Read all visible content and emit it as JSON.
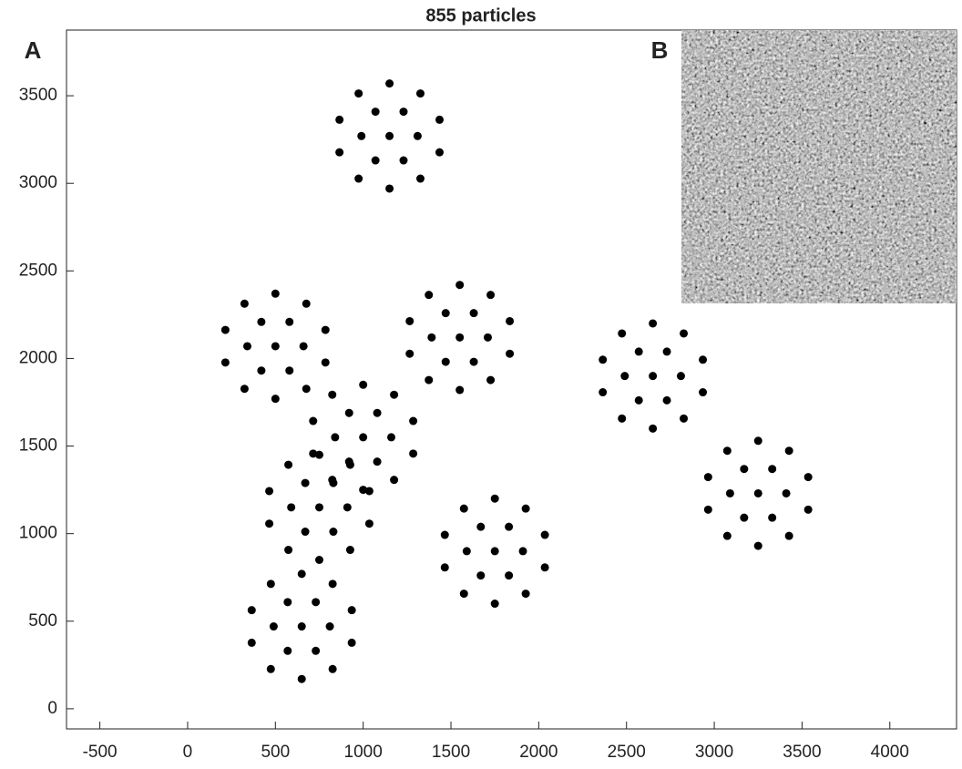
{
  "chart_data": {
    "type": "scatter",
    "title": "855 particles",
    "annotations": [
      "A",
      "B"
    ],
    "xlim": [
      -690,
      4380
    ],
    "ylim": [
      -115,
      3875
    ],
    "xticks": [
      -500,
      0,
      500,
      1000,
      1500,
      2000,
      2500,
      3000,
      3500,
      4000
    ],
    "yticks": [
      0,
      500,
      1000,
      1500,
      2000,
      2500,
      3000,
      3500
    ],
    "series": [
      {
        "color": "#000000",
        "x": [
          1150,
          1310,
          1230,
          1070,
          990,
          1070,
          1230,
          1435,
          1326,
          1150,
          974,
          865,
          865,
          974,
          1150,
          1326,
          1435,
          500,
          660,
          580,
          420,
          340,
          420,
          580,
          785,
          676,
          500,
          324,
          215,
          215,
          324,
          500,
          676,
          785,
          1550,
          1710,
          1630,
          1470,
          1390,
          1470,
          1630,
          1835,
          1726,
          1550,
          1374,
          1265,
          1265,
          1374,
          1550,
          1726,
          1835,
          2650,
          2810,
          2730,
          2570,
          2490,
          2570,
          2730,
          2935,
          2826,
          2650,
          2474,
          2365,
          2365,
          2474,
          2650,
          2826,
          2935,
          1000,
          1160,
          1080,
          920,
          840,
          920,
          1080,
          1285,
          1176,
          1000,
          824,
          715,
          715,
          824,
          1000,
          1176,
          1285,
          3250,
          3410,
          3330,
          3170,
          3090,
          3170,
          3330,
          3535,
          3426,
          3250,
          3074,
          2965,
          2965,
          3074,
          3250,
          3426,
          3535,
          750,
          910,
          830,
          670,
          590,
          670,
          830,
          1035,
          926,
          750,
          574,
          465,
          465,
          574,
          750,
          926,
          1035,
          1750,
          1910,
          1830,
          1670,
          1590,
          1670,
          1830,
          2035,
          1926,
          1750,
          1574,
          1465,
          1465,
          1574,
          1750,
          1926,
          2035,
          650,
          810,
          730,
          570,
          490,
          570,
          730,
          935,
          826,
          650,
          474,
          365,
          365,
          474,
          650,
          826,
          935
        ],
        "y": [
          3270,
          3270,
          3409,
          3409,
          3270,
          3131,
          3131,
          3363,
          3513,
          3570,
          3513,
          3363,
          3177,
          3027,
          2970,
          3027,
          3177,
          2070,
          2070,
          2209,
          2209,
          2070,
          1931,
          1931,
          2163,
          2313,
          2370,
          2313,
          2163,
          1977,
          1827,
          1770,
          1827,
          1977,
          2120,
          2120,
          2259,
          2259,
          2120,
          1981,
          1981,
          2213,
          2363,
          2420,
          2363,
          2213,
          2027,
          1877,
          1820,
          1877,
          2027,
          1900,
          1900,
          2039,
          2039,
          1900,
          1761,
          1761,
          1993,
          2143,
          2200,
          2143,
          1993,
          1807,
          1657,
          1600,
          1657,
          1807,
          1550,
          1550,
          1689,
          1689,
          1550,
          1411,
          1411,
          1643,
          1793,
          1850,
          1793,
          1643,
          1457,
          1307,
          1250,
          1307,
          1457,
          1230,
          1230,
          1369,
          1369,
          1230,
          1091,
          1091,
          1323,
          1473,
          1530,
          1473,
          1323,
          1137,
          987,
          930,
          987,
          1137,
          1150,
          1150,
          1289,
          1289,
          1150,
          1011,
          1011,
          1243,
          1393,
          1450,
          1393,
          1243,
          1057,
          907,
          850,
          907,
          1057,
          900,
          900,
          1039,
          1039,
          900,
          761,
          761,
          993,
          1143,
          1200,
          1143,
          993,
          807,
          657,
          600,
          657,
          807,
          470,
          470,
          609,
          609,
          470,
          331,
          331,
          563,
          713,
          770,
          713,
          563,
          377,
          227,
          170,
          227,
          377
        ]
      }
    ]
  }
}
